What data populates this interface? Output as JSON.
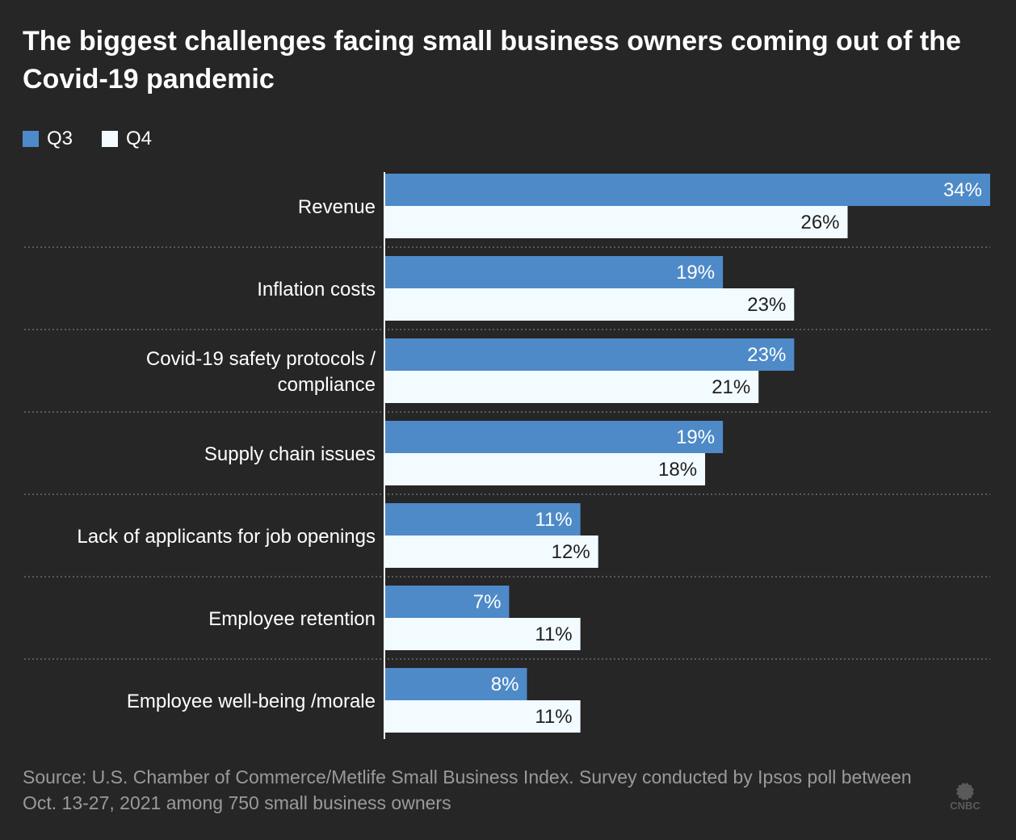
{
  "title": "The biggest challenges facing small business owners coming out of the Covid-19 pandemic",
  "source": "Source: U.S. Chamber of Commerce/Metlife Small Business Index. Survey conducted by Ipsos poll between Oct. 13-27, 2021 among 750 small business owners",
  "logo": {
    "icon": "cnbc-peacock-logo",
    "text": "CNBC"
  },
  "colors": {
    "background": "#262626",
    "q3": "#4e8ac8",
    "q4": "#f2fbff",
    "divider": "#6a6a6a",
    "source_text": "#9a9a9a"
  },
  "chart_data": {
    "type": "bar",
    "orientation": "horizontal",
    "title": "The biggest challenges facing small business owners coming out of the Covid-19 pandemic",
    "categories": [
      [
        "Revenue"
      ],
      [
        "Inflation costs"
      ],
      [
        "Covid-19 safety protocols /",
        "compliance"
      ],
      [
        "Supply chain issues"
      ],
      [
        "Lack of applicants for job openings"
      ],
      [
        "Employee retention"
      ],
      [
        "Employee well-being /morale"
      ]
    ],
    "series": [
      {
        "name": "Q3",
        "values": [
          34,
          19,
          23,
          19,
          11,
          7,
          8
        ],
        "labels": [
          "34%",
          "19%",
          "23%",
          "19%",
          "11%",
          "7%",
          "8%"
        ]
      },
      {
        "name": "Q4",
        "values": [
          26,
          23,
          21,
          18,
          12,
          11,
          11
        ],
        "labels": [
          "26%",
          "23%",
          "21%",
          "18%",
          "12%",
          "11%",
          "11%"
        ]
      }
    ],
    "xlim": [
      0,
      34
    ],
    "legend": "top-left",
    "grid": false
  }
}
